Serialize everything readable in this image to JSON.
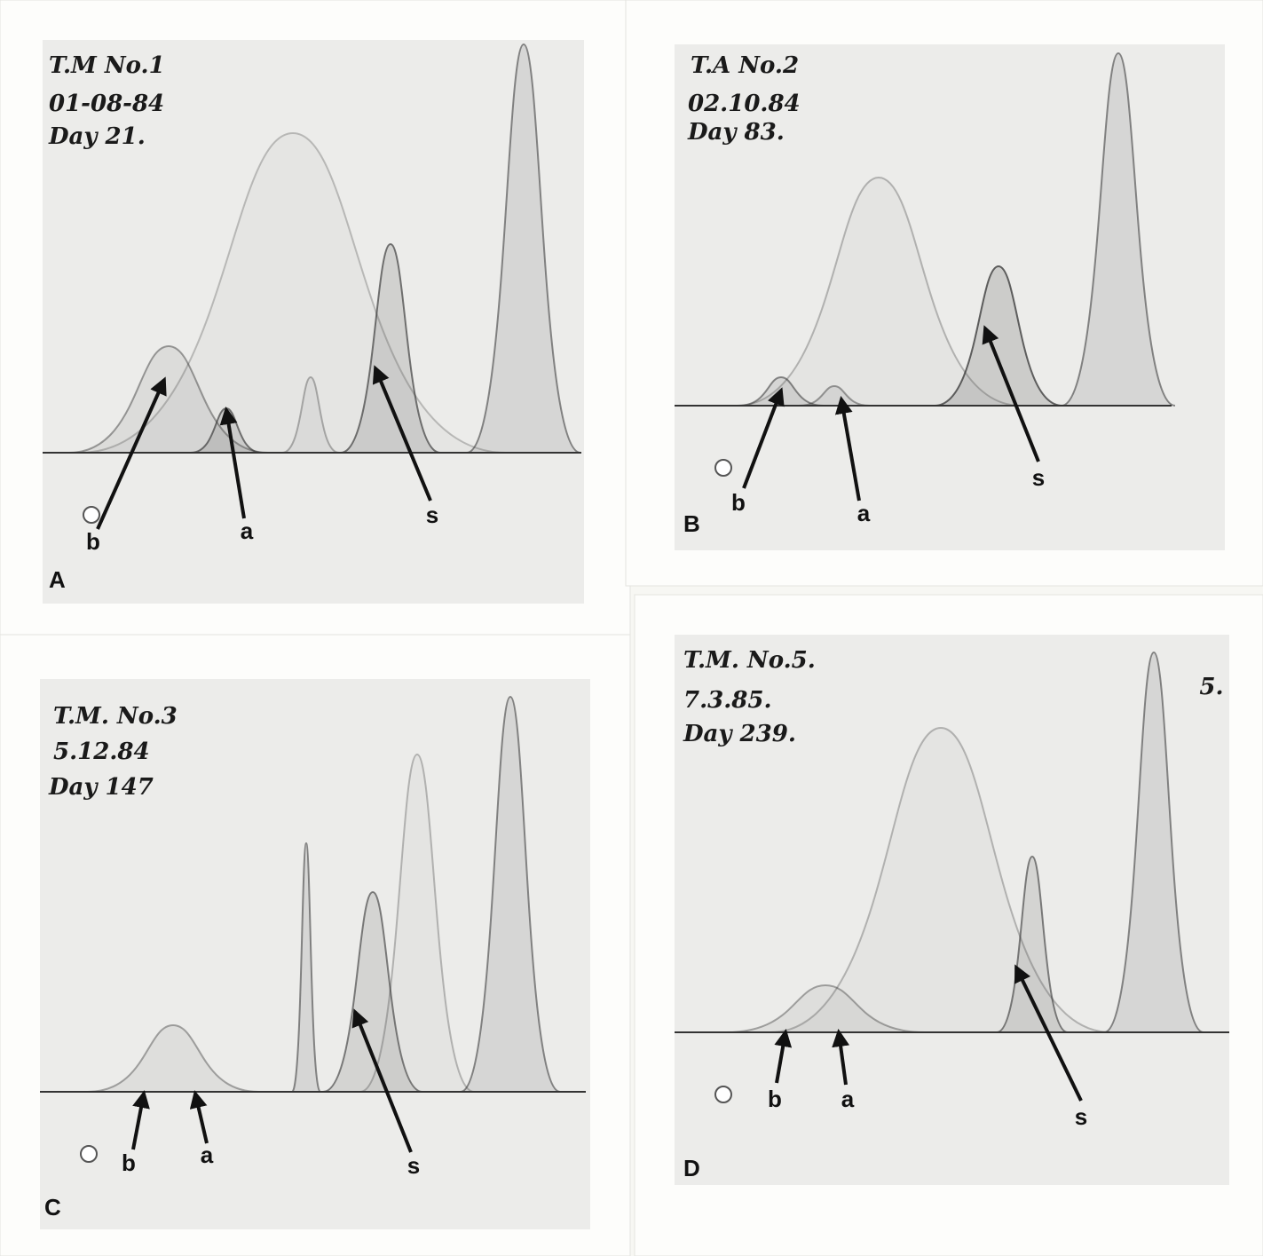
{
  "panels": [
    {
      "letter": "A",
      "notes": [
        "T.M No.1",
        "01-08-84",
        "Day 21."
      ],
      "markers": [
        "b",
        "a",
        "s"
      ]
    },
    {
      "letter": "B",
      "notes": [
        "T.A No.2",
        "02.10.84",
        "Day 83."
      ],
      "markers": [
        "b",
        "a",
        "s"
      ]
    },
    {
      "letter": "C",
      "notes": [
        "T.M. No.3",
        "5.12.84",
        "Day 147"
      ],
      "markers": [
        "b",
        "a",
        "s"
      ]
    },
    {
      "letter": "D",
      "notes": [
        "T.M. No.5.",
        "7.3.85.",
        "Day 239."
      ],
      "markers": [
        "b",
        "a",
        "s"
      ],
      "corner": "5."
    }
  ]
}
